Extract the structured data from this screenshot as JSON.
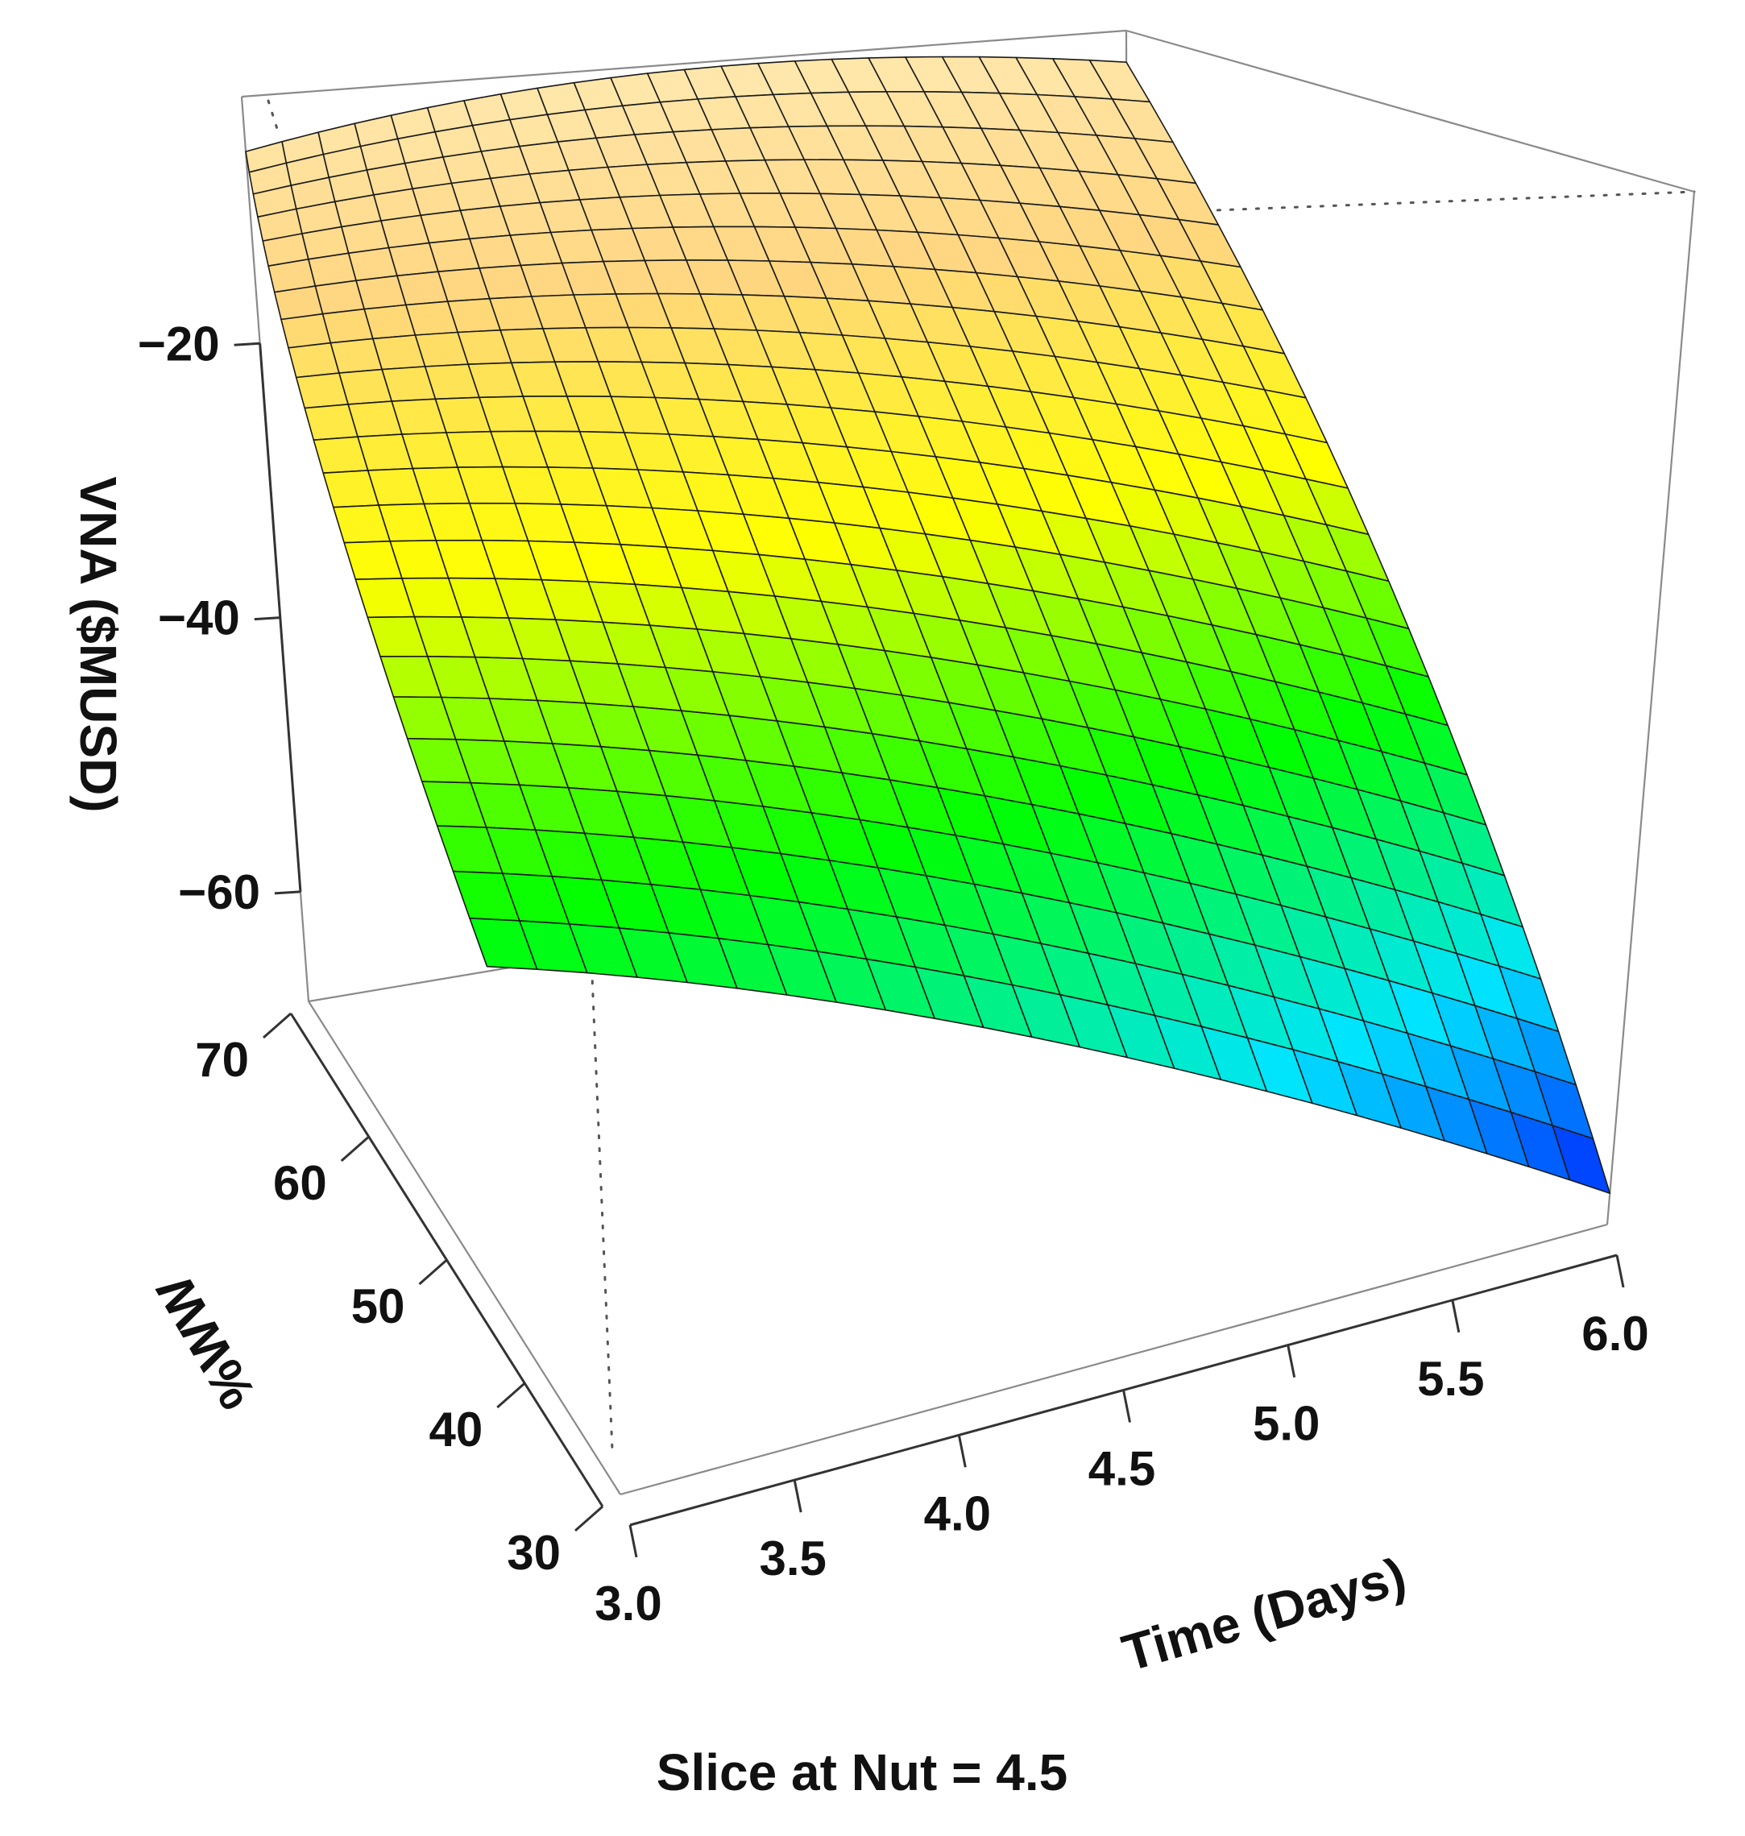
{
  "chart_data": {
    "type": "surface3d",
    "z_label": "VNA ($MUSD)",
    "x_label": "Time (Days)",
    "y_label": "%WW",
    "caption": "Slice at Nut = 4.5",
    "x_range": [
      3.0,
      6.0
    ],
    "y_range": [
      30,
      70
    ],
    "z_range": [
      -68,
      -2
    ],
    "x_ticks": [
      "3.0",
      "3.5",
      "4.0",
      "4.5",
      "5.0",
      "5.5",
      "6.0"
    ],
    "y_ticks": [
      "30",
      "40",
      "50",
      "60",
      "70"
    ],
    "z_ticks": [
      "-20",
      "-40",
      "-60"
    ],
    "grid_size": [
      24,
      24
    ],
    "corner_values": {
      "t3.0_ww30": -43,
      "t3.0_ww70": -6,
      "t6.0_ww70": -4.5,
      "t6.0_ww30": -66
    },
    "colormap": [
      "#ffe9b0",
      "#ffd680",
      "#ffff00",
      "#00ff00",
      "#00e5ff",
      "#0000ff"
    ]
  }
}
